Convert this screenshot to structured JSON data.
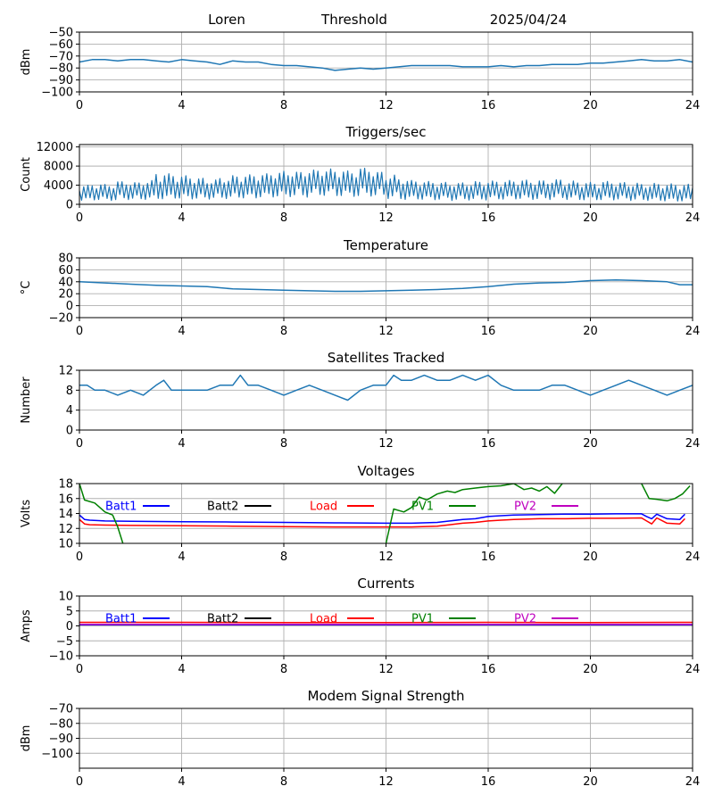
{
  "header": {
    "station": "Loren",
    "mode": "Threshold",
    "date": "2025/04/24"
  },
  "x_axis": {
    "ticks": [
      0,
      4,
      8,
      12,
      16,
      20,
      24
    ],
    "lim": [
      0,
      24
    ]
  },
  "colors": {
    "series_default": "#1f77b4",
    "batt1": "#0000ff",
    "batt2": "#000000",
    "load": "#ff0000",
    "pv1": "#008000",
    "pv2": "#bf00bf",
    "grid": "#b0b0b0",
    "axis": "#000000"
  },
  "chart_data": [
    {
      "type": "line",
      "title": "",
      "ylabel": "dBm",
      "ylim": [
        -100,
        -50
      ],
      "yticks": [
        -50,
        -60,
        -70,
        -80,
        -90,
        -100
      ],
      "grid": true,
      "series": [
        {
          "color": "#1f77b4",
          "x": [
            0,
            0.5,
            1,
            1.5,
            2,
            2.5,
            3,
            3.5,
            4,
            4.5,
            5,
            5.5,
            6,
            6.5,
            7,
            7.5,
            8,
            8.5,
            9,
            9.5,
            10,
            10.5,
            11,
            11.5,
            12,
            12.5,
            13,
            13.5,
            14,
            14.5,
            15,
            15.5,
            16,
            16.5,
            17,
            17.5,
            18,
            18.5,
            19,
            19.5,
            20,
            20.5,
            21,
            21.5,
            22,
            22.5,
            23,
            23.5,
            24
          ],
          "y": [
            -75,
            -73,
            -73,
            -74,
            -73,
            -73,
            -74,
            -75,
            -73,
            -74,
            -75,
            -77,
            -74,
            -75,
            -75,
            -77,
            -78,
            -78,
            -79,
            -80,
            -82,
            -81,
            -80,
            -81,
            -80,
            -79,
            -78,
            -78,
            -78,
            -78,
            -79,
            -79,
            -79,
            -78,
            -79,
            -78,
            -78,
            -77,
            -77,
            -77,
            -76,
            -76,
            -75,
            -74,
            -73,
            -74,
            -74,
            -73,
            -75
          ]
        }
      ]
    },
    {
      "type": "line",
      "title": "Triggers/sec",
      "ylabel": "Count",
      "ylim": [
        0,
        12500
      ],
      "yticks": [
        0,
        4000,
        8000,
        12000
      ],
      "grid": true,
      "series": [
        {
          "color": "#1f77b4",
          "x": [
            0,
            0.5,
            1,
            1.5,
            2,
            2.5,
            3,
            3.5,
            4,
            4.5,
            5,
            5.5,
            6,
            6.5,
            7,
            7.5,
            8,
            8.5,
            9,
            9.5,
            10,
            10.5,
            11,
            11.5,
            12,
            12.5,
            13,
            13.5,
            14,
            14.5,
            15,
            15.5,
            16,
            16.5,
            17,
            17.5,
            18,
            18.5,
            19,
            19.5,
            20,
            20.5,
            21,
            21.5,
            22,
            22.5,
            23,
            23.5,
            24
          ],
          "y": [
            2200,
            2500,
            2400,
            2700,
            2600,
            2800,
            3200,
            3600,
            3300,
            3100,
            3000,
            3300,
            3500,
            3600,
            3800,
            4000,
            4200,
            4400,
            4600,
            4800,
            4700,
            4500,
            4700,
            4300,
            3600,
            3200,
            3000,
            2800,
            2700,
            2600,
            2600,
            2700,
            2800,
            2900,
            3000,
            2900,
            2800,
            3000,
            2800,
            2700,
            2600,
            2700,
            2600,
            2500,
            2400,
            2300,
            2200,
            2200,
            2100
          ],
          "min": [
            800,
            900,
            800,
            1000,
            900,
            1000,
            1100,
            1200,
            1100,
            1000,
            1100,
            1200,
            1300,
            1200,
            1400,
            1500,
            1600,
            1500,
            1700,
            1800,
            1700,
            1600,
            1700,
            1500,
            1200,
            1000,
            1000,
            900,
            900,
            800,
            900,
            900,
            1000,
            1000,
            1100,
            1000,
            1000,
            1100,
            1000,
            900,
            900,
            900,
            900,
            800,
            800,
            700,
            600,
            600,
            600
          ],
          "max": [
            4000,
            4300,
            4200,
            4800,
            4600,
            5000,
            6800,
            6400,
            6000,
            5500,
            5200,
            5600,
            6000,
            6200,
            6400,
            6800,
            7000,
            6800,
            7200,
            7400,
            7200,
            7000,
            7600,
            6800,
            6200,
            5400,
            5000,
            4800,
            4600,
            4500,
            4600,
            4800,
            4900,
            5000,
            5200,
            5100,
            5000,
            5200,
            4900,
            4800,
            4600,
            4800,
            4600,
            4500,
            4300,
            4400,
            4300,
            4200,
            4000
          ]
        }
      ]
    },
    {
      "type": "line",
      "title": "Temperature",
      "ylabel": "°C",
      "ylim": [
        -20,
        80
      ],
      "yticks": [
        -20,
        0,
        20,
        40,
        60,
        80
      ],
      "grid": true,
      "series": [
        {
          "color": "#1f77b4",
          "x": [
            0,
            1,
            2,
            3,
            4,
            5,
            5.5,
            6,
            7,
            8,
            9,
            10,
            11,
            12,
            13,
            14,
            15,
            16,
            17,
            18,
            19,
            20,
            21,
            22,
            23,
            23.5,
            24
          ],
          "y": [
            40,
            38,
            36,
            34,
            33,
            32,
            30,
            28,
            27,
            26,
            25,
            24,
            24,
            25,
            26,
            27,
            29,
            32,
            36,
            38,
            39,
            42,
            43,
            42,
            40,
            35,
            35
          ]
        }
      ]
    },
    {
      "type": "line",
      "title": "Satellites Tracked",
      "ylabel": "Number",
      "ylim": [
        0,
        12
      ],
      "yticks": [
        0,
        4,
        8,
        12
      ],
      "grid": true,
      "series": [
        {
          "color": "#1f77b4",
          "x": [
            0,
            0.3,
            0.6,
            1,
            1.5,
            2,
            2.5,
            3,
            3.3,
            3.6,
            4,
            4.5,
            5,
            5.5,
            6,
            6.3,
            6.6,
            7,
            7.5,
            8,
            8.5,
            9,
            9.5,
            10,
            10.5,
            11,
            11.5,
            12,
            12.3,
            12.6,
            13,
            13.5,
            14,
            14.5,
            15,
            15.5,
            16,
            16.5,
            17,
            17.5,
            18,
            18.5,
            19,
            19.5,
            20,
            20.5,
            21,
            21.5,
            22,
            22.5,
            23,
            23.5,
            24
          ],
          "y": [
            9,
            9,
            8,
            8,
            7,
            8,
            7,
            9,
            10,
            8,
            8,
            8,
            8,
            9,
            9,
            11,
            9,
            9,
            8,
            7,
            8,
            9,
            8,
            7,
            6,
            8,
            9,
            9,
            11,
            10,
            10,
            11,
            10,
            10,
            11,
            10,
            11,
            9,
            8,
            8,
            8,
            9,
            9,
            8,
            7,
            8,
            9,
            10,
            9,
            8,
            7,
            8,
            9
          ]
        }
      ]
    },
    {
      "type": "line",
      "title": "Voltages",
      "ylabel": "Volts",
      "ylim": [
        10,
        18
      ],
      "yticks": [
        10,
        12,
        14,
        16,
        18
      ],
      "grid": true,
      "legend_placement": "top",
      "series": [
        {
          "name": "Batt1",
          "color": "#0000ff",
          "x": [
            0,
            0.2,
            0.4,
            1,
            2,
            4,
            6,
            8,
            10,
            12,
            13,
            14,
            14.5,
            15,
            15.5,
            16,
            16.5,
            17,
            18,
            19,
            20,
            21,
            22,
            22.2,
            22.4,
            22.6,
            23,
            23.5,
            23.7
          ],
          "y": [
            13.8,
            13.2,
            13.1,
            13.0,
            12.95,
            12.9,
            12.85,
            12.8,
            12.75,
            12.7,
            12.7,
            12.8,
            13.0,
            13.2,
            13.3,
            13.6,
            13.7,
            13.8,
            13.85,
            13.9,
            13.9,
            13.95,
            13.95,
            13.6,
            13.3,
            13.9,
            13.3,
            13.2,
            13.9
          ]
        },
        {
          "name": "Batt2",
          "color": "#000000",
          "x": [],
          "y": []
        },
        {
          "name": "Load",
          "color": "#ff0000",
          "x": [
            0,
            0.2,
            0.4,
            1,
            2,
            4,
            6,
            8,
            10,
            12,
            13,
            14,
            14.5,
            15,
            15.5,
            16,
            16.5,
            17,
            18,
            19,
            20,
            21,
            22,
            22.2,
            22.4,
            22.6,
            23,
            23.5,
            23.7
          ],
          "y": [
            13.2,
            12.6,
            12.5,
            12.45,
            12.4,
            12.35,
            12.3,
            12.25,
            12.2,
            12.2,
            12.2,
            12.3,
            12.5,
            12.7,
            12.8,
            13.0,
            13.1,
            13.2,
            13.3,
            13.3,
            13.35,
            13.35,
            13.4,
            13.0,
            12.6,
            13.4,
            12.7,
            12.6,
            13.3
          ]
        },
        {
          "name": "PV1",
          "color": "#008000",
          "segments": [
            {
              "x": [
                0,
                0.2,
                0.6,
                1,
                1.3,
                1.5,
                1.7
              ],
              "y": [
                18,
                15.8,
                15.4,
                14.2,
                13.8,
                12.2,
                10
              ]
            },
            {
              "x": [
                12,
                12.3,
                12.7,
                13,
                13.3,
                13.6,
                14,
                14.4,
                14.7,
                15,
                15.5,
                16,
                16.5,
                17,
                17.4,
                17.7,
                18,
                18.3,
                18.6,
                18.9
              ],
              "y": [
                10,
                14.6,
                14.2,
                14.8,
                16.2,
                15.8,
                16.6,
                17.0,
                16.8,
                17.2,
                17.4,
                17.6,
                17.7,
                18.0,
                17.2,
                17.4,
                17.0,
                17.6,
                16.7,
                18.0
              ]
            },
            {
              "x": [
                22,
                22.3,
                22.6,
                23,
                23.3,
                23.6,
                23.9
              ],
              "y": [
                18,
                16.0,
                15.9,
                15.7,
                16.0,
                16.6,
                17.7
              ]
            }
          ]
        },
        {
          "name": "PV2",
          "color": "#bf00bf",
          "x": [],
          "y": []
        }
      ]
    },
    {
      "type": "line",
      "title": "Currents",
      "ylabel": "Amps",
      "ylim": [
        -10,
        10
      ],
      "yticks": [
        -10,
        -5,
        0,
        5,
        10
      ],
      "grid": true,
      "legend_placement": "top",
      "series": [
        {
          "name": "Batt1",
          "color": "#0000ff",
          "x": [
            0,
            24
          ],
          "y": [
            0.4,
            0.4
          ]
        },
        {
          "name": "Batt2",
          "color": "#000000",
          "x": [],
          "y": []
        },
        {
          "name": "Load",
          "color": "#ff0000",
          "x": [
            0,
            4,
            8,
            12,
            16,
            20,
            24
          ],
          "y": [
            1.2,
            1.2,
            1.1,
            1.1,
            1.2,
            1.1,
            1.2
          ]
        },
        {
          "name": "PV1",
          "color": "#008000",
          "x": [],
          "y": []
        },
        {
          "name": "PV2",
          "color": "#bf00bf",
          "x": [
            0,
            24
          ],
          "y": [
            0.5,
            0.5
          ]
        }
      ]
    },
    {
      "type": "line",
      "title": "Modem Signal Strength",
      "ylabel": "dBm",
      "ylim": [
        -110,
        -70
      ],
      "yticks": [
        -70,
        -80,
        -90,
        -100
      ],
      "grid": true,
      "series": []
    }
  ]
}
